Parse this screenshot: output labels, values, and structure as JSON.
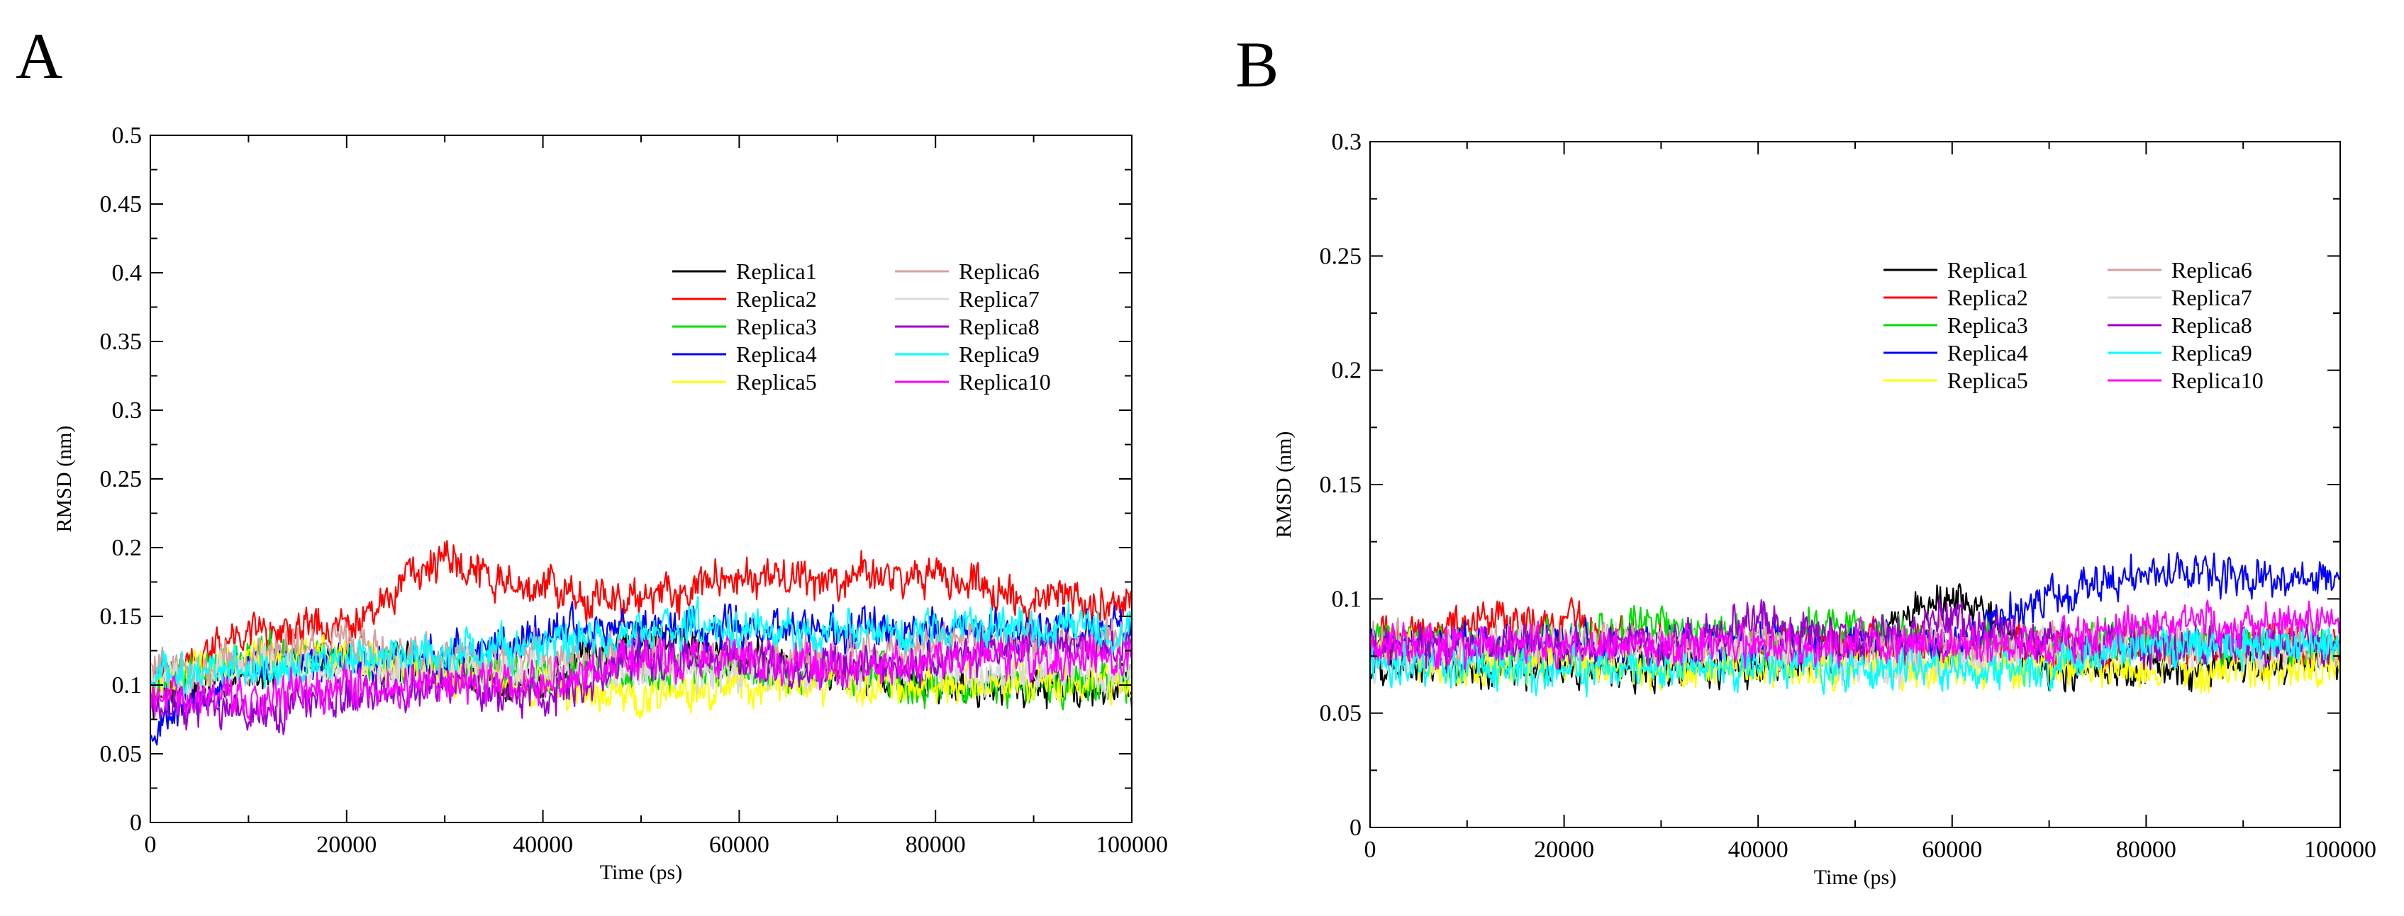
{
  "figure": {
    "panels": [
      "A",
      "B"
    ]
  },
  "chart_data": [
    {
      "panel": "A",
      "type": "line",
      "title": "",
      "xlabel": "Time (ps)",
      "ylabel": "RMSD (nm)",
      "xlim": [
        0,
        100000
      ],
      "ylim": [
        0,
        0.5
      ],
      "xticks": [
        0,
        20000,
        40000,
        60000,
        80000,
        100000
      ],
      "yticks": [
        0,
        0.05,
        0.1,
        0.15,
        0.2,
        0.25,
        0.3,
        0.35,
        0.4,
        0.45,
        0.5
      ],
      "ytick_labels": [
        "0",
        "0.05",
        "0.1",
        "0.15",
        "0.2",
        "0.25",
        "0.3",
        "0.35",
        "0.4",
        "0.45",
        "0.5"
      ],
      "legend_position": "upper-right, two columns",
      "series": [
        {
          "name": "Replica1",
          "color": "#000000",
          "x": [
            0,
            10000,
            20000,
            30000,
            40000,
            50000,
            60000,
            70000,
            80000,
            90000,
            100000
          ],
          "values": [
            0.09,
            0.11,
            0.12,
            0.11,
            0.1,
            0.14,
            0.12,
            0.11,
            0.1,
            0.1,
            0.1
          ]
        },
        {
          "name": "Replica2",
          "color": "#ff0000",
          "x": [
            0,
            10000,
            20000,
            30000,
            40000,
            50000,
            60000,
            70000,
            80000,
            90000,
            100000
          ],
          "values": [
            0.1,
            0.14,
            0.14,
            0.19,
            0.17,
            0.16,
            0.18,
            0.18,
            0.18,
            0.16,
            0.16
          ]
        },
        {
          "name": "Replica3",
          "color": "#00dd00",
          "x": [
            0,
            10000,
            20000,
            30000,
            40000,
            50000,
            60000,
            70000,
            80000,
            90000,
            100000
          ],
          "values": [
            0.1,
            0.12,
            0.12,
            0.11,
            0.11,
            0.11,
            0.11,
            0.11,
            0.1,
            0.1,
            0.1
          ]
        },
        {
          "name": "Replica4",
          "color": "#0000ff",
          "x": [
            0,
            10000,
            20000,
            30000,
            40000,
            50000,
            60000,
            70000,
            80000,
            90000,
            100000
          ],
          "values": [
            0.07,
            0.11,
            0.12,
            0.12,
            0.14,
            0.14,
            0.14,
            0.14,
            0.14,
            0.14,
            0.14
          ]
        },
        {
          "name": "Replica5",
          "color": "#ffff00",
          "x": [
            0,
            10000,
            20000,
            30000,
            40000,
            50000,
            60000,
            70000,
            80000,
            90000,
            100000
          ],
          "values": [
            0.1,
            0.12,
            0.12,
            0.11,
            0.1,
            0.09,
            0.1,
            0.1,
            0.1,
            0.1,
            0.1
          ]
        },
        {
          "name": "Replica6",
          "color": "#d7a0a0",
          "x": [
            0,
            10000,
            20000,
            30000,
            40000,
            50000,
            60000,
            70000,
            80000,
            90000,
            100000
          ],
          "values": [
            0.11,
            0.12,
            0.13,
            0.12,
            0.12,
            0.12,
            0.12,
            0.12,
            0.13,
            0.13,
            0.13
          ]
        },
        {
          "name": "Replica7",
          "color": "#d9d9d9",
          "x": [
            0,
            10000,
            20000,
            30000,
            40000,
            50000,
            60000,
            70000,
            80000,
            90000,
            100000
          ],
          "values": [
            0.1,
            0.11,
            0.11,
            0.11,
            0.11,
            0.11,
            0.11,
            0.11,
            0.11,
            0.11,
            0.11
          ]
        },
        {
          "name": "Replica8",
          "color": "#9900cc",
          "x": [
            0,
            10000,
            20000,
            30000,
            40000,
            50000,
            60000,
            70000,
            80000,
            90000,
            100000
          ],
          "values": [
            0.09,
            0.08,
            0.09,
            0.1,
            0.09,
            0.12,
            0.12,
            0.11,
            0.12,
            0.13,
            0.13
          ]
        },
        {
          "name": "Replica9",
          "color": "#00ffff",
          "x": [
            0,
            10000,
            20000,
            30000,
            40000,
            50000,
            60000,
            70000,
            80000,
            90000,
            100000
          ],
          "values": [
            0.11,
            0.11,
            0.12,
            0.12,
            0.13,
            0.14,
            0.14,
            0.14,
            0.14,
            0.14,
            0.14
          ]
        },
        {
          "name": "Replica10",
          "color": "#ff00ff",
          "x": [
            0,
            10000,
            20000,
            30000,
            40000,
            50000,
            60000,
            70000,
            80000,
            90000,
            100000
          ],
          "values": [
            0.09,
            0.09,
            0.1,
            0.1,
            0.1,
            0.12,
            0.12,
            0.11,
            0.12,
            0.12,
            0.12
          ]
        }
      ]
    },
    {
      "panel": "B",
      "type": "line",
      "title": "",
      "xlabel": "Time (ps)",
      "ylabel": "RMSD (nm)",
      "xlim": [
        0,
        100000
      ],
      "ylim": [
        0,
        0.3
      ],
      "xticks": [
        0,
        20000,
        40000,
        60000,
        80000,
        100000
      ],
      "yticks": [
        0,
        0.05,
        0.1,
        0.15,
        0.2,
        0.25,
        0.3
      ],
      "ytick_labels": [
        "0",
        "0.05",
        "0.1",
        "0.15",
        "0.2",
        "0.25",
        "0.3"
      ],
      "legend_position": "upper-right, two columns",
      "series": [
        {
          "name": "Replica1",
          "color": "#000000",
          "x": [
            0,
            10000,
            20000,
            30000,
            40000,
            50000,
            60000,
            70000,
            80000,
            90000,
            100000
          ],
          "values": [
            0.07,
            0.07,
            0.07,
            0.07,
            0.07,
            0.08,
            0.1,
            0.07,
            0.07,
            0.07,
            0.07
          ]
        },
        {
          "name": "Replica2",
          "color": "#ff0000",
          "x": [
            0,
            10000,
            20000,
            30000,
            40000,
            50000,
            60000,
            70000,
            80000,
            90000,
            100000
          ],
          "values": [
            0.08,
            0.09,
            0.09,
            0.08,
            0.08,
            0.08,
            0.08,
            0.08,
            0.08,
            0.08,
            0.08
          ]
        },
        {
          "name": "Replica3",
          "color": "#00dd00",
          "x": [
            0,
            10000,
            20000,
            30000,
            40000,
            50000,
            60000,
            70000,
            80000,
            90000,
            100000
          ],
          "values": [
            0.08,
            0.08,
            0.08,
            0.09,
            0.08,
            0.09,
            0.08,
            0.08,
            0.08,
            0.08,
            0.08
          ]
        },
        {
          "name": "Replica4",
          "color": "#0000ff",
          "x": [
            0,
            10000,
            20000,
            30000,
            40000,
            50000,
            60000,
            70000,
            80000,
            90000,
            100000
          ],
          "values": [
            0.08,
            0.08,
            0.08,
            0.08,
            0.08,
            0.08,
            0.08,
            0.1,
            0.11,
            0.11,
            0.11
          ]
        },
        {
          "name": "Replica5",
          "color": "#ffff00",
          "x": [
            0,
            10000,
            20000,
            30000,
            40000,
            50000,
            60000,
            70000,
            80000,
            90000,
            100000
          ],
          "values": [
            0.08,
            0.07,
            0.07,
            0.07,
            0.07,
            0.07,
            0.07,
            0.07,
            0.07,
            0.07,
            0.07
          ]
        },
        {
          "name": "Replica6",
          "color": "#d7a0a0",
          "x": [
            0,
            10000,
            20000,
            30000,
            40000,
            50000,
            60000,
            70000,
            80000,
            90000,
            100000
          ],
          "values": [
            0.08,
            0.08,
            0.08,
            0.08,
            0.08,
            0.08,
            0.08,
            0.08,
            0.08,
            0.08,
            0.08
          ]
        },
        {
          "name": "Replica7",
          "color": "#d9d9d9",
          "x": [
            0,
            10000,
            20000,
            30000,
            40000,
            50000,
            60000,
            70000,
            80000,
            90000,
            100000
          ],
          "values": [
            0.07,
            0.08,
            0.08,
            0.08,
            0.08,
            0.07,
            0.07,
            0.08,
            0.08,
            0.08,
            0.08
          ]
        },
        {
          "name": "Replica8",
          "color": "#9900cc",
          "x": [
            0,
            10000,
            20000,
            30000,
            40000,
            50000,
            60000,
            70000,
            80000,
            90000,
            100000
          ],
          "values": [
            0.08,
            0.08,
            0.08,
            0.08,
            0.09,
            0.08,
            0.09,
            0.08,
            0.08,
            0.08,
            0.08
          ]
        },
        {
          "name": "Replica9",
          "color": "#00ffff",
          "x": [
            0,
            10000,
            20000,
            30000,
            40000,
            50000,
            60000,
            70000,
            80000,
            90000,
            100000
          ],
          "values": [
            0.07,
            0.07,
            0.07,
            0.07,
            0.07,
            0.07,
            0.07,
            0.07,
            0.08,
            0.08,
            0.08
          ]
        },
        {
          "name": "Replica10",
          "color": "#ff00ff",
          "x": [
            0,
            10000,
            20000,
            30000,
            40000,
            50000,
            60000,
            70000,
            80000,
            90000,
            100000
          ],
          "values": [
            0.08,
            0.08,
            0.08,
            0.08,
            0.08,
            0.08,
            0.08,
            0.08,
            0.09,
            0.09,
            0.09
          ]
        }
      ]
    }
  ]
}
